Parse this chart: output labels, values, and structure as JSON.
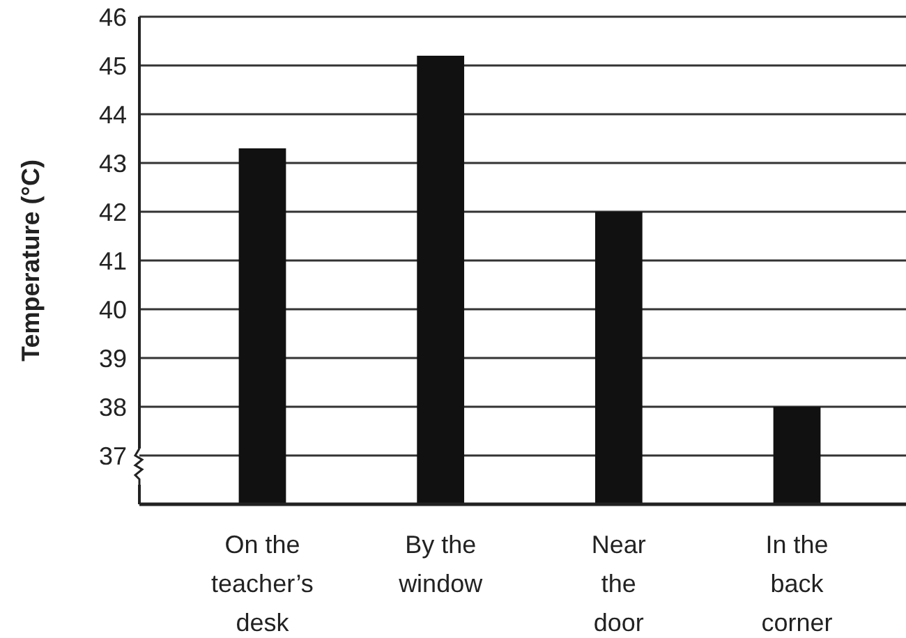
{
  "chart_data": {
    "type": "bar",
    "ylabel": "Temperature (°C)",
    "categories": [
      "On the teacher’s desk",
      "By the window",
      "Near the door",
      "In the back corner"
    ],
    "values": [
      43.3,
      45.2,
      42,
      38
    ],
    "color": "#111111",
    "ylim": [
      36,
      46
    ],
    "yticks": [
      {
        "value": 36,
        "label": null
      },
      37,
      38,
      39,
      40,
      41,
      42,
      43,
      44,
      45,
      46
    ],
    "grid": "y"
  }
}
